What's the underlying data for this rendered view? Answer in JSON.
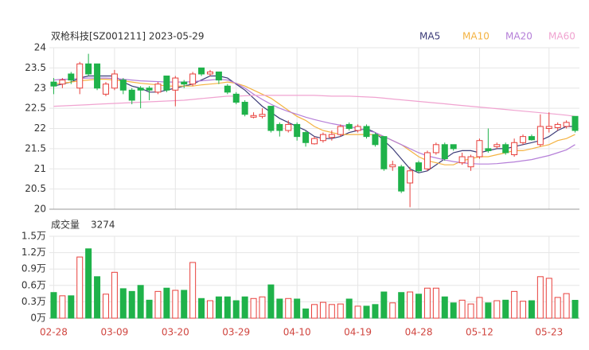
{
  "chart_data": [
    {
      "type": "candlestick",
      "title": "双枪科技[SZ001211] 2023-05-29",
      "categories": [
        "02-28",
        null,
        null,
        null,
        null,
        null,
        null,
        "03-09",
        null,
        null,
        null,
        null,
        null,
        null,
        "03-20",
        null,
        null,
        null,
        null,
        null,
        null,
        "03-29",
        null,
        null,
        null,
        null,
        null,
        null,
        "04-10",
        null,
        null,
        null,
        null,
        null,
        null,
        "04-19",
        null,
        null,
        null,
        null,
        null,
        null,
        "04-28",
        null,
        null,
        null,
        null,
        null,
        null,
        "05-12",
        null,
        null,
        null,
        null,
        null,
        null,
        null,
        "05-23",
        null,
        null,
        null
      ],
      "open": [
        23.15,
        23.1,
        23.35,
        23.0,
        23.6,
        23.6,
        22.85,
        23.0,
        23.2,
        22.95,
        23.0,
        23.0,
        22.9,
        23.3,
        22.95,
        23.15,
        23.1,
        23.5,
        23.35,
        23.4,
        23.05,
        22.85,
        22.65,
        22.28,
        22.3,
        22.55,
        22.1,
        21.95,
        22.1,
        21.9,
        21.62,
        21.7,
        21.78,
        21.85,
        22.1,
        21.95,
        22.05,
        21.85,
        21.8,
        21.05,
        21.05,
        20.65,
        21.15,
        21.0,
        21.4,
        21.6,
        21.6,
        21.15,
        21.05,
        21.3,
        21.5,
        21.55,
        21.6,
        21.35,
        21.65,
        21.8,
        21.6,
        22.0,
        22.02,
        22.05,
        22.3
      ],
      "high": [
        23.25,
        23.25,
        23.4,
        23.65,
        23.85,
        23.6,
        23.15,
        23.45,
        23.25,
        23.0,
        23.05,
        23.05,
        23.15,
        23.3,
        23.3,
        23.2,
        23.4,
        23.5,
        23.45,
        23.4,
        23.1,
        22.9,
        22.7,
        22.4,
        22.5,
        22.55,
        22.15,
        22.2,
        22.15,
        21.95,
        21.8,
        21.9,
        21.95,
        22.1,
        22.15,
        22.1,
        22.1,
        21.9,
        21.8,
        21.2,
        21.1,
        21.05,
        21.2,
        21.45,
        21.65,
        21.65,
        21.6,
        21.4,
        21.35,
        21.75,
        22.0,
        21.65,
        21.65,
        21.75,
        21.85,
        21.85,
        22.35,
        22.4,
        22.15,
        22.2,
        22.3
      ],
      "low": [
        22.85,
        23.0,
        23.1,
        22.85,
        23.3,
        22.95,
        22.8,
        22.95,
        22.85,
        22.6,
        22.5,
        22.7,
        22.85,
        22.9,
        22.55,
        23.0,
        23.05,
        23.3,
        23.3,
        23.1,
        22.85,
        22.6,
        22.3,
        22.25,
        22.25,
        21.9,
        21.8,
        21.9,
        21.7,
        21.55,
        21.6,
        21.65,
        21.7,
        21.8,
        21.95,
        21.9,
        21.75,
        21.55,
        20.95,
        20.95,
        20.4,
        20.05,
        20.9,
        20.95,
        21.35,
        21.2,
        21.45,
        21.1,
        20.95,
        21.25,
        21.4,
        21.5,
        21.35,
        21.3,
        21.6,
        21.7,
        21.55,
        21.9,
        21.95,
        22.0,
        21.9
      ],
      "close": [
        23.05,
        23.2,
        23.2,
        23.6,
        23.35,
        23.0,
        23.1,
        23.35,
        22.95,
        22.7,
        22.95,
        22.95,
        23.1,
        22.95,
        23.25,
        23.1,
        23.35,
        23.35,
        23.4,
        23.2,
        22.9,
        22.65,
        22.35,
        22.32,
        22.35,
        21.95,
        21.95,
        22.1,
        21.8,
        21.65,
        21.75,
        21.85,
        21.85,
        22.05,
        22.0,
        22.05,
        21.8,
        21.6,
        21.0,
        21.1,
        20.45,
        20.95,
        20.95,
        21.4,
        21.6,
        21.25,
        21.5,
        21.3,
        21.3,
        21.7,
        21.45,
        21.6,
        21.4,
        21.65,
        21.8,
        21.72,
        22.05,
        22.05,
        22.1,
        22.15,
        21.95
      ],
      "up_color": "#e8403c",
      "down_color": "#1fb24a",
      "series": [
        {
          "name": "MA5",
          "color": "#3c3c78",
          "values": [
            23.05,
            23.1,
            23.15,
            23.25,
            23.3,
            23.3,
            23.3,
            23.3,
            23.15,
            23.05,
            23.0,
            22.9,
            22.9,
            22.95,
            23.0,
            23.05,
            23.1,
            23.2,
            23.3,
            23.3,
            23.25,
            23.1,
            22.95,
            22.75,
            22.55,
            22.4,
            22.25,
            22.15,
            22.05,
            21.95,
            21.8,
            21.75,
            21.75,
            21.8,
            21.9,
            21.95,
            22.0,
            21.9,
            21.7,
            21.5,
            21.25,
            21.0,
            20.9,
            20.95,
            21.1,
            21.25,
            21.4,
            21.45,
            21.45,
            21.4,
            21.45,
            21.5,
            21.5,
            21.55,
            21.6,
            21.65,
            21.7,
            21.8,
            21.95,
            22.05,
            22.05
          ]
        },
        {
          "name": "MA10",
          "color": "#f4b342",
          "values": [
            23.1,
            23.12,
            23.15,
            23.18,
            23.2,
            23.22,
            23.22,
            23.2,
            23.18,
            23.15,
            23.12,
            23.1,
            23.08,
            23.05,
            23.05,
            23.05,
            23.05,
            23.08,
            23.1,
            23.12,
            23.15,
            23.12,
            23.05,
            22.95,
            22.85,
            22.75,
            22.6,
            22.45,
            22.3,
            22.2,
            22.05,
            21.95,
            21.9,
            21.85,
            21.85,
            21.85,
            21.85,
            21.85,
            21.8,
            21.7,
            21.6,
            21.45,
            21.3,
            21.2,
            21.15,
            21.1,
            21.1,
            21.2,
            21.25,
            21.3,
            21.3,
            21.35,
            21.4,
            21.45,
            21.45,
            21.5,
            21.55,
            21.6,
            21.7,
            21.75,
            21.85
          ]
        },
        {
          "name": "MA20",
          "color": "#b57fd8",
          "values": [
            23.2,
            23.22,
            23.22,
            23.24,
            23.25,
            23.25,
            23.25,
            23.24,
            23.22,
            23.2,
            23.18,
            23.17,
            23.16,
            23.15,
            23.15,
            23.15,
            23.16,
            23.18,
            23.2,
            23.22,
            23.2,
            23.12,
            23.0,
            22.85,
            22.72,
            22.6,
            22.5,
            22.42,
            22.35,
            22.28,
            22.22,
            22.17,
            22.12,
            22.08,
            22.05,
            22.0,
            21.95,
            21.9,
            21.8,
            21.7,
            21.6,
            21.5,
            21.4,
            21.32,
            21.27,
            21.22,
            21.18,
            21.15,
            21.13,
            21.12,
            21.12,
            21.13,
            21.15,
            21.17,
            21.2,
            21.23,
            21.28,
            21.33,
            21.4,
            21.47,
            21.6
          ]
        },
        {
          "name": "MA60",
          "color": "#f0a3d0",
          "values": [
            22.55,
            22.56,
            22.57,
            22.58,
            22.59,
            22.6,
            22.61,
            22.62,
            22.63,
            22.64,
            22.65,
            22.66,
            22.67,
            22.68,
            22.69,
            22.7,
            22.72,
            22.74,
            22.76,
            22.78,
            22.8,
            22.8,
            22.81,
            22.82,
            22.82,
            22.82,
            22.82,
            22.82,
            22.82,
            22.82,
            22.82,
            22.81,
            22.8,
            22.8,
            22.8,
            22.79,
            22.78,
            22.77,
            22.75,
            22.73,
            22.71,
            22.69,
            22.67,
            22.65,
            22.63,
            22.61,
            22.59,
            22.57,
            22.55,
            22.53,
            22.51,
            22.49,
            22.47,
            22.45,
            22.43,
            22.41,
            22.39,
            22.37,
            22.35,
            22.33,
            22.3
          ]
        }
      ],
      "ylim": [
        20,
        24
      ],
      "yticks": [
        20,
        20.5,
        21,
        21.5,
        22,
        22.5,
        23,
        23.5,
        24
      ],
      "grid": true,
      "legend": "top-right"
    },
    {
      "type": "bar",
      "title": "成交量",
      "values": [
        4700,
        4100,
        4100,
        11200,
        12700,
        7600,
        4400,
        8400,
        5400,
        4900,
        6000,
        3300,
        4900,
        5500,
        5100,
        5100,
        10200,
        3600,
        3200,
        3900,
        3900,
        3200,
        3900,
        3600,
        3900,
        6100,
        3500,
        3600,
        3500,
        1700,
        2500,
        2900,
        2500,
        2600,
        3500,
        2200,
        2200,
        2500,
        4800,
        2800,
        4700,
        4800,
        4400,
        5500,
        5500,
        3900,
        2800,
        3300,
        2600,
        3800,
        2800,
        3200,
        3300,
        4900,
        3100,
        3200,
        7600,
        7300,
        3800,
        4500,
        3274
      ],
      "ylim": [
        0,
        15000
      ],
      "yticks": [
        {
          "value": 0,
          "label": "0万"
        },
        {
          "value": 3000,
          "label": "0.3万"
        },
        {
          "value": 6000,
          "label": "0.6万"
        },
        {
          "value": 9000,
          "label": "0.9万"
        },
        {
          "value": 12000,
          "label": "1.2万"
        },
        {
          "value": 15000,
          "label": "1.5万"
        }
      ],
      "grid": true
    }
  ]
}
